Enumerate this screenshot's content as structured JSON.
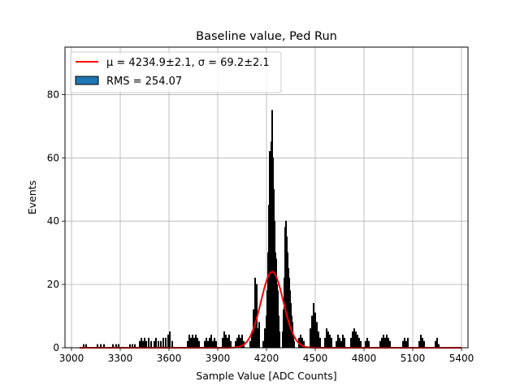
{
  "chart_data": {
    "type": "bar",
    "title": "Baseline value, Ped Run",
    "xlabel": "Sample Value [ADC Counts]",
    "ylabel": "Events",
    "xlim": [
      2960,
      5440
    ],
    "ylim": [
      0,
      95
    ],
    "xticks": [
      3000,
      3300,
      3600,
      3900,
      4200,
      4500,
      4800,
      5100,
      5400
    ],
    "yticks": [
      0,
      20,
      40,
      60,
      80
    ],
    "grid": true,
    "legend_position": "top-left",
    "legend": [
      {
        "label": "μ = 4234.9±2.1, σ = 69.2±2.1",
        "kind": "line",
        "color": "#ff0000"
      },
      {
        "label": "RMS = 254.07",
        "kind": "patch",
        "color": "#1f77b4"
      }
    ],
    "fit": {
      "mu": 4234.9,
      "sigma": 69.2,
      "amplitude": 24,
      "x_range": [
        3050,
        5400
      ],
      "color": "#ff0000"
    },
    "histogram": {
      "color": "#000000",
      "bins": [
        [
          3075,
          1
        ],
        [
          3090,
          1
        ],
        [
          3160,
          1
        ],
        [
          3180,
          1
        ],
        [
          3200,
          1
        ],
        [
          3255,
          1
        ],
        [
          3275,
          1
        ],
        [
          3290,
          1
        ],
        [
          3360,
          1
        ],
        [
          3375,
          1
        ],
        [
          3390,
          1
        ],
        [
          3420,
          2
        ],
        [
          3430,
          3
        ],
        [
          3440,
          2
        ],
        [
          3450,
          3
        ],
        [
          3460,
          2
        ],
        [
          3475,
          3
        ],
        [
          3490,
          2
        ],
        [
          3510,
          2
        ],
        [
          3520,
          3
        ],
        [
          3535,
          2
        ],
        [
          3550,
          2
        ],
        [
          3565,
          3
        ],
        [
          3580,
          3
        ],
        [
          3595,
          4
        ],
        [
          3605,
          5
        ],
        [
          3620,
          2
        ],
        [
          3715,
          2
        ],
        [
          3725,
          4
        ],
        [
          3735,
          3
        ],
        [
          3745,
          4
        ],
        [
          3755,
          3
        ],
        [
          3765,
          4
        ],
        [
          3775,
          3
        ],
        [
          3785,
          2
        ],
        [
          3820,
          2
        ],
        [
          3830,
          3
        ],
        [
          3840,
          2
        ],
        [
          3850,
          3
        ],
        [
          3860,
          4
        ],
        [
          3870,
          2
        ],
        [
          3880,
          3
        ],
        [
          3890,
          2
        ],
        [
          3930,
          3
        ],
        [
          3940,
          5
        ],
        [
          3950,
          4
        ],
        [
          3960,
          3
        ],
        [
          3970,
          4
        ],
        [
          3980,
          2
        ],
        [
          4010,
          2
        ],
        [
          4020,
          3
        ],
        [
          4030,
          4
        ],
        [
          4040,
          3
        ],
        [
          4050,
          4
        ],
        [
          4060,
          2
        ],
        [
          4100,
          2
        ],
        [
          4110,
          5
        ],
        [
          4120,
          12
        ],
        [
          4130,
          22
        ],
        [
          4140,
          20
        ],
        [
          4148,
          6
        ],
        [
          4155,
          8
        ],
        [
          4180,
          2
        ],
        [
          4190,
          6
        ],
        [
          4200,
          10
        ],
        [
          4205,
          18
        ],
        [
          4210,
          30
        ],
        [
          4215,
          45
        ],
        [
          4220,
          62
        ],
        [
          4225,
          58
        ],
        [
          4230,
          65
        ],
        [
          4235,
          75
        ],
        [
          4240,
          60
        ],
        [
          4245,
          50
        ],
        [
          4250,
          40
        ],
        [
          4255,
          30
        ],
        [
          4260,
          28
        ],
        [
          4265,
          20
        ],
        [
          4270,
          18
        ],
        [
          4275,
          10
        ],
        [
          4280,
          5
        ],
        [
          4300,
          5
        ],
        [
          4305,
          12
        ],
        [
          4310,
          22
        ],
        [
          4315,
          38
        ],
        [
          4320,
          40
        ],
        [
          4325,
          35
        ],
        [
          4330,
          30
        ],
        [
          4335,
          25
        ],
        [
          4340,
          22
        ],
        [
          4345,
          18
        ],
        [
          4350,
          14
        ],
        [
          4355,
          10
        ],
        [
          4360,
          8
        ],
        [
          4365,
          4
        ],
        [
          4370,
          2
        ],
        [
          4400,
          3
        ],
        [
          4410,
          4
        ],
        [
          4420,
          3
        ],
        [
          4430,
          2
        ],
        [
          4470,
          6
        ],
        [
          4480,
          10
        ],
        [
          4490,
          14
        ],
        [
          4500,
          11
        ],
        [
          4510,
          8
        ],
        [
          4520,
          5
        ],
        [
          4530,
          3
        ],
        [
          4560,
          3
        ],
        [
          4570,
          6
        ],
        [
          4580,
          5
        ],
        [
          4590,
          4
        ],
        [
          4600,
          3
        ],
        [
          4630,
          2
        ],
        [
          4640,
          4
        ],
        [
          4650,
          3
        ],
        [
          4660,
          2
        ],
        [
          4670,
          4
        ],
        [
          4680,
          3
        ],
        [
          4720,
          3
        ],
        [
          4730,
          5
        ],
        [
          4740,
          6
        ],
        [
          4750,
          5
        ],
        [
          4760,
          4
        ],
        [
          4770,
          3
        ],
        [
          4780,
          2
        ],
        [
          4810,
          2
        ],
        [
          4820,
          3
        ],
        [
          4830,
          2
        ],
        [
          4900,
          2
        ],
        [
          4910,
          3
        ],
        [
          4920,
          4
        ],
        [
          4930,
          3
        ],
        [
          4940,
          4
        ],
        [
          4950,
          3
        ],
        [
          4960,
          2
        ],
        [
          5040,
          2
        ],
        [
          5050,
          3
        ],
        [
          5060,
          2
        ],
        [
          5070,
          3
        ],
        [
          5140,
          2
        ],
        [
          5150,
          4
        ],
        [
          5160,
          3
        ],
        [
          5170,
          2
        ],
        [
          5240,
          2
        ],
        [
          5250,
          3
        ],
        [
          5260,
          1
        ]
      ]
    }
  }
}
